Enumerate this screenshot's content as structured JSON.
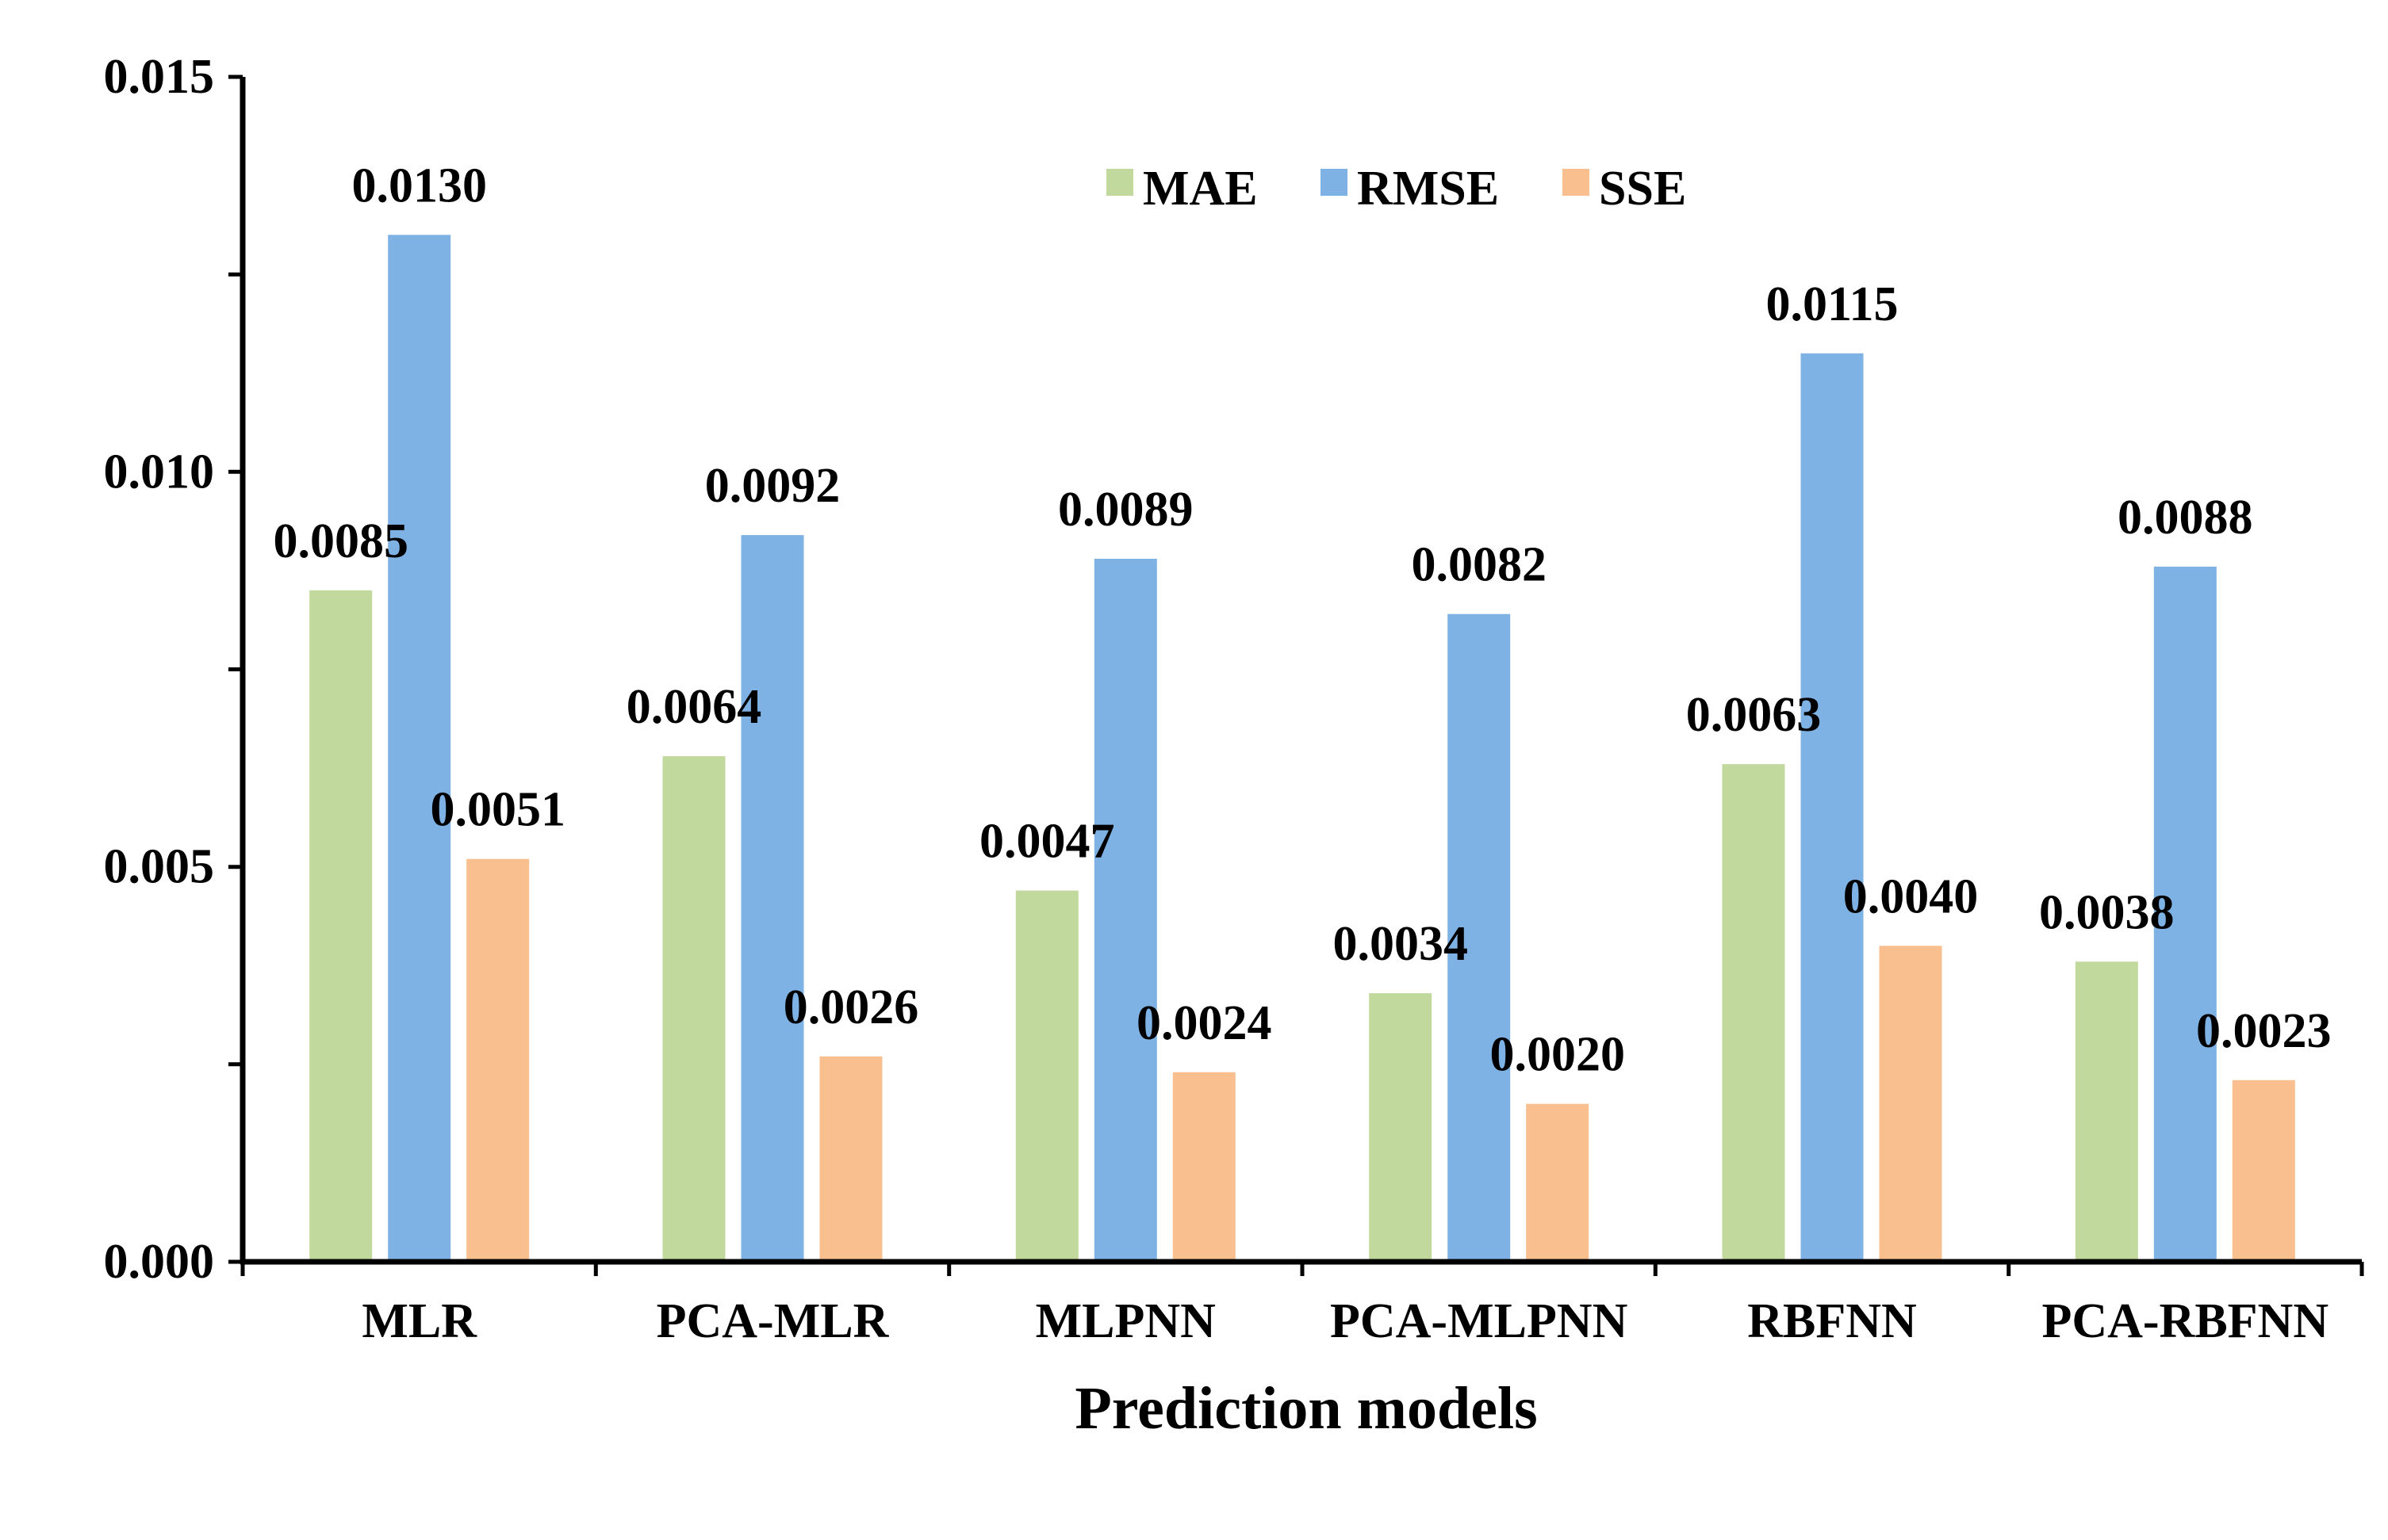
{
  "chart_data": {
    "type": "bar",
    "title": "",
    "xlabel": "Prediction models",
    "ylabel": "",
    "ylim": [
      0,
      0.015
    ],
    "yticks": [
      "0.000",
      "0.005",
      "0.010",
      "0.015"
    ],
    "grid": false,
    "legend_position": "top-center",
    "categories": [
      "MLR",
      "PCA-MLR",
      "MLPNN",
      "PCA-MLPNN",
      "RBFNN",
      "PCA-RBFNN"
    ],
    "series": [
      {
        "name": "MAE",
        "color": "#c1d99c",
        "values": [
          0.0085,
          0.0064,
          0.0047,
          0.0034,
          0.0063,
          0.0038
        ],
        "labels": [
          "0.0085",
          "0.0064",
          "0.0047",
          "0.0034",
          "0.0063",
          "0.0038"
        ]
      },
      {
        "name": "RMSE",
        "color": "#7fb2e4",
        "values": [
          0.013,
          0.0092,
          0.0089,
          0.0082,
          0.0115,
          0.0088
        ],
        "labels": [
          "0.0130",
          "0.0092",
          "0.0089",
          "0.0082",
          "0.0115",
          "0.0088"
        ]
      },
      {
        "name": "SSE",
        "color": "#f9bf8f",
        "values": [
          0.0051,
          0.0026,
          0.0024,
          0.002,
          0.004,
          0.0023
        ],
        "labels": [
          "0.0051",
          "0.0026",
          "0.0024",
          "0.0020",
          "0.0040",
          "0.0023"
        ]
      }
    ]
  }
}
